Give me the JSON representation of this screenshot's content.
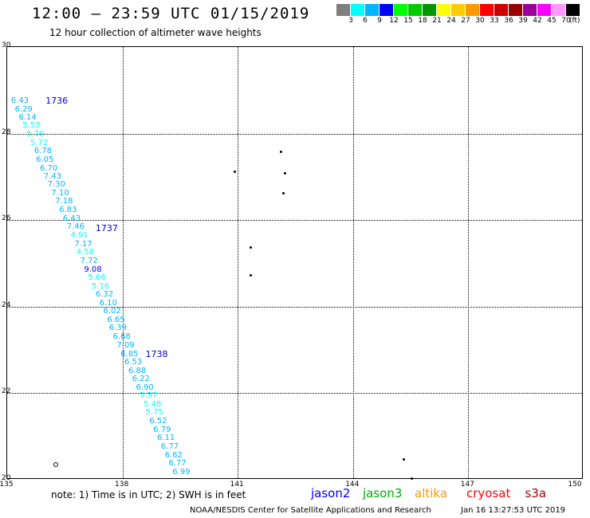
{
  "title": "12:00 — 23:59 UTC 01/15/2019",
  "subtitle": "12 hour collection of altimeter wave heights",
  "scale": {
    "colors": [
      "#7f7f7f",
      "#00ffff",
      "#00b4ff",
      "#0000ff",
      "#00ff00",
      "#00cc00",
      "#009600",
      "#ffff00",
      "#ffcc00",
      "#ff9900",
      "#ff0000",
      "#cc0000",
      "#990000",
      "#990099",
      "#ff00ff",
      "#ff99ff",
      "#000000"
    ],
    "labels": [
      "3",
      "6",
      "9",
      "12",
      "15",
      "18",
      "21",
      "24",
      "27",
      "30",
      "33",
      "36",
      "39",
      "42",
      "45",
      "70"
    ],
    "units": "(ft)"
  },
  "axes": {
    "lat_labels": [
      "30",
      "28",
      "26",
      "24",
      "22",
      "20"
    ],
    "lon_labels": [
      "135",
      "138",
      "141",
      "144",
      "147",
      "150"
    ],
    "lat_range": [
      20,
      30
    ],
    "lon_range": [
      135,
      150
    ]
  },
  "passes": [
    {
      "label": "1736",
      "lon": 136.0,
      "lat": 28.75
    },
    {
      "label": "1737",
      "lon": 137.3,
      "lat": 25.8
    },
    {
      "label": "1738",
      "lon": 138.6,
      "lat": 22.9
    }
  ],
  "observations": [
    {
      "v": "6.43",
      "lon": 135.1,
      "lat": 28.75,
      "c": "#00b4ff"
    },
    {
      "v": "6.29",
      "lon": 135.2,
      "lat": 28.55,
      "c": "#00b4ff"
    },
    {
      "v": "6.14",
      "lon": 135.3,
      "lat": 28.36,
      "c": "#00b4ff"
    },
    {
      "v": "5.53",
      "lon": 135.4,
      "lat": 28.17,
      "c": "#00ffff"
    },
    {
      "v": "5.76",
      "lon": 135.5,
      "lat": 27.98,
      "c": "#00ffff"
    },
    {
      "v": "5.72",
      "lon": 135.6,
      "lat": 27.78,
      "c": "#00ffff"
    },
    {
      "v": "6.78",
      "lon": 135.7,
      "lat": 27.59,
      "c": "#00b4ff"
    },
    {
      "v": "6.05",
      "lon": 135.75,
      "lat": 27.39,
      "c": "#00b4ff"
    },
    {
      "v": "6.70",
      "lon": 135.85,
      "lat": 27.19,
      "c": "#00b4ff"
    },
    {
      "v": "7.43",
      "lon": 135.95,
      "lat": 27.0,
      "c": "#00b4ff"
    },
    {
      "v": "7.30",
      "lon": 136.05,
      "lat": 26.81,
      "c": "#00b4ff"
    },
    {
      "v": "7.10",
      "lon": 136.15,
      "lat": 26.61,
      "c": "#00b4ff"
    },
    {
      "v": "7.18",
      "lon": 136.25,
      "lat": 26.42,
      "c": "#00b4ff"
    },
    {
      "v": "6.83",
      "lon": 136.35,
      "lat": 26.22,
      "c": "#00b4ff"
    },
    {
      "v": "6.43",
      "lon": 136.45,
      "lat": 26.02,
      "c": "#00b4ff"
    },
    {
      "v": "7.46",
      "lon": 136.55,
      "lat": 25.83,
      "c": "#00b4ff"
    },
    {
      "v": "4.91",
      "lon": 136.65,
      "lat": 25.63,
      "c": "#00ffff"
    },
    {
      "v": "7.17",
      "lon": 136.75,
      "lat": 25.44,
      "c": "#00b4ff"
    },
    {
      "v": "4.58",
      "lon": 136.8,
      "lat": 25.24,
      "c": "#00ffff"
    },
    {
      "v": "7.72",
      "lon": 136.9,
      "lat": 25.05,
      "c": "#00b4ff"
    },
    {
      "v": "9.08",
      "lon": 137.0,
      "lat": 24.85,
      "c": "#0000ff"
    },
    {
      "v": "5.66",
      "lon": 137.1,
      "lat": 24.66,
      "c": "#00ffff"
    },
    {
      "v": "5.16",
      "lon": 137.2,
      "lat": 24.46,
      "c": "#00ffff"
    },
    {
      "v": "6.32",
      "lon": 137.3,
      "lat": 24.27,
      "c": "#00b4ff"
    },
    {
      "v": "6.10",
      "lon": 137.4,
      "lat": 24.07,
      "c": "#00b4ff"
    },
    {
      "v": "6.02",
      "lon": 137.5,
      "lat": 23.88,
      "c": "#00b4ff"
    },
    {
      "v": "6.65",
      "lon": 137.6,
      "lat": 23.68,
      "c": "#00b4ff"
    },
    {
      "v": "6.39",
      "lon": 137.65,
      "lat": 23.49,
      "c": "#00b4ff"
    },
    {
      "v": "6.68",
      "lon": 137.75,
      "lat": 23.29,
      "c": "#00b4ff"
    },
    {
      "v": "7.09",
      "lon": 137.85,
      "lat": 23.1,
      "c": "#00b4ff"
    },
    {
      "v": "6.85",
      "lon": 137.95,
      "lat": 22.9,
      "c": "#00b4ff"
    },
    {
      "v": "6.53",
      "lon": 138.05,
      "lat": 22.71,
      "c": "#00b4ff"
    },
    {
      "v": "6.88",
      "lon": 138.15,
      "lat": 22.51,
      "c": "#00b4ff"
    },
    {
      "v": "6.22",
      "lon": 138.25,
      "lat": 22.32,
      "c": "#00b4ff"
    },
    {
      "v": "6.90",
      "lon": 138.35,
      "lat": 22.12,
      "c": "#00b4ff"
    },
    {
      "v": "5.57",
      "lon": 138.45,
      "lat": 21.93,
      "c": "#00ffff"
    },
    {
      "v": "5.48",
      "lon": 138.55,
      "lat": 21.73,
      "c": "#00ffff"
    },
    {
      "v": "5.75",
      "lon": 138.6,
      "lat": 21.54,
      "c": "#00ffff"
    },
    {
      "v": "6.52",
      "lon": 138.7,
      "lat": 21.34,
      "c": "#00b4ff"
    },
    {
      "v": "6.79",
      "lon": 138.8,
      "lat": 21.15,
      "c": "#00b4ff"
    },
    {
      "v": "6.11",
      "lon": 138.9,
      "lat": 20.95,
      "c": "#00b4ff"
    },
    {
      "v": "6.77",
      "lon": 139.0,
      "lat": 20.76,
      "c": "#00b4ff"
    },
    {
      "v": "6.62",
      "lon": 139.1,
      "lat": 20.56,
      "c": "#00b4ff"
    },
    {
      "v": "6.77",
      "lon": 139.2,
      "lat": 20.37,
      "c": "#00b4ff"
    },
    {
      "v": "6.99",
      "lon": 139.3,
      "lat": 20.17,
      "c": "#00b4ff"
    }
  ],
  "islands": [
    {
      "lon": 142.1,
      "lat": 27.6
    },
    {
      "lon": 140.9,
      "lat": 27.15
    },
    {
      "lon": 142.2,
      "lat": 27.1
    },
    {
      "lon": 142.15,
      "lat": 26.65
    },
    {
      "lon": 141.3,
      "lat": 25.4
    },
    {
      "lon": 141.3,
      "lat": 24.75
    },
    {
      "lon": 145.3,
      "lat": 20.5
    },
    {
      "lon": 145.5,
      "lat": 20.05
    }
  ],
  "note": "note:  1) Time is in UTC;  2) SWH is in feet",
  "satellites": [
    {
      "name": "jason2",
      "color": "#0000ff"
    },
    {
      "name": "jason3",
      "color": "#00aa00"
    },
    {
      "name": "altika",
      "color": "#ff9900"
    },
    {
      "name": "cryosat",
      "color": "#ff0000"
    },
    {
      "name": "s3a",
      "color": "#990000"
    }
  ],
  "footer": "NOAA/NESDIS Center for Satellite Applications and Research",
  "footer_date": "Jan 16 13:27:53 UTC 2019"
}
